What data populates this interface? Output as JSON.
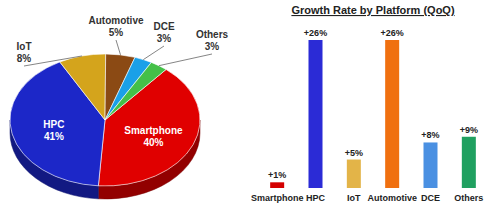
{
  "chart_data": [
    {
      "type": "pie",
      "categories": [
        "Smartphone",
        "HPC",
        "IoT",
        "Automotive",
        "DCE",
        "Others"
      ],
      "values": [
        40,
        41,
        8,
        5,
        3,
        3
      ],
      "value_labels": [
        "40%",
        "41%",
        "8%",
        "5%",
        "3%",
        "3%"
      ],
      "colors": [
        "#e00000",
        "#1c27c8",
        "#d4a41c",
        "#8b4a14",
        "#1aa0e8",
        "#44c048"
      ],
      "data_labels": true
    },
    {
      "type": "bar",
      "title": "Growth Rate by Platform (QoQ)",
      "categories": [
        "Smartphone",
        "HPC",
        "IoT",
        "Automotive",
        "DCE",
        "Others"
      ],
      "values": [
        1,
        26,
        5,
        26,
        8,
        9
      ],
      "value_labels": [
        "+1%",
        "+26%",
        "+5%",
        "+26%",
        "+8%",
        "+9%"
      ],
      "colors": [
        "#d40000",
        "#2b2bd6",
        "#e3b448",
        "#f07010",
        "#4a90e2",
        "#20a060"
      ],
      "data_labels": true,
      "tick_labels": "x"
    }
  ]
}
